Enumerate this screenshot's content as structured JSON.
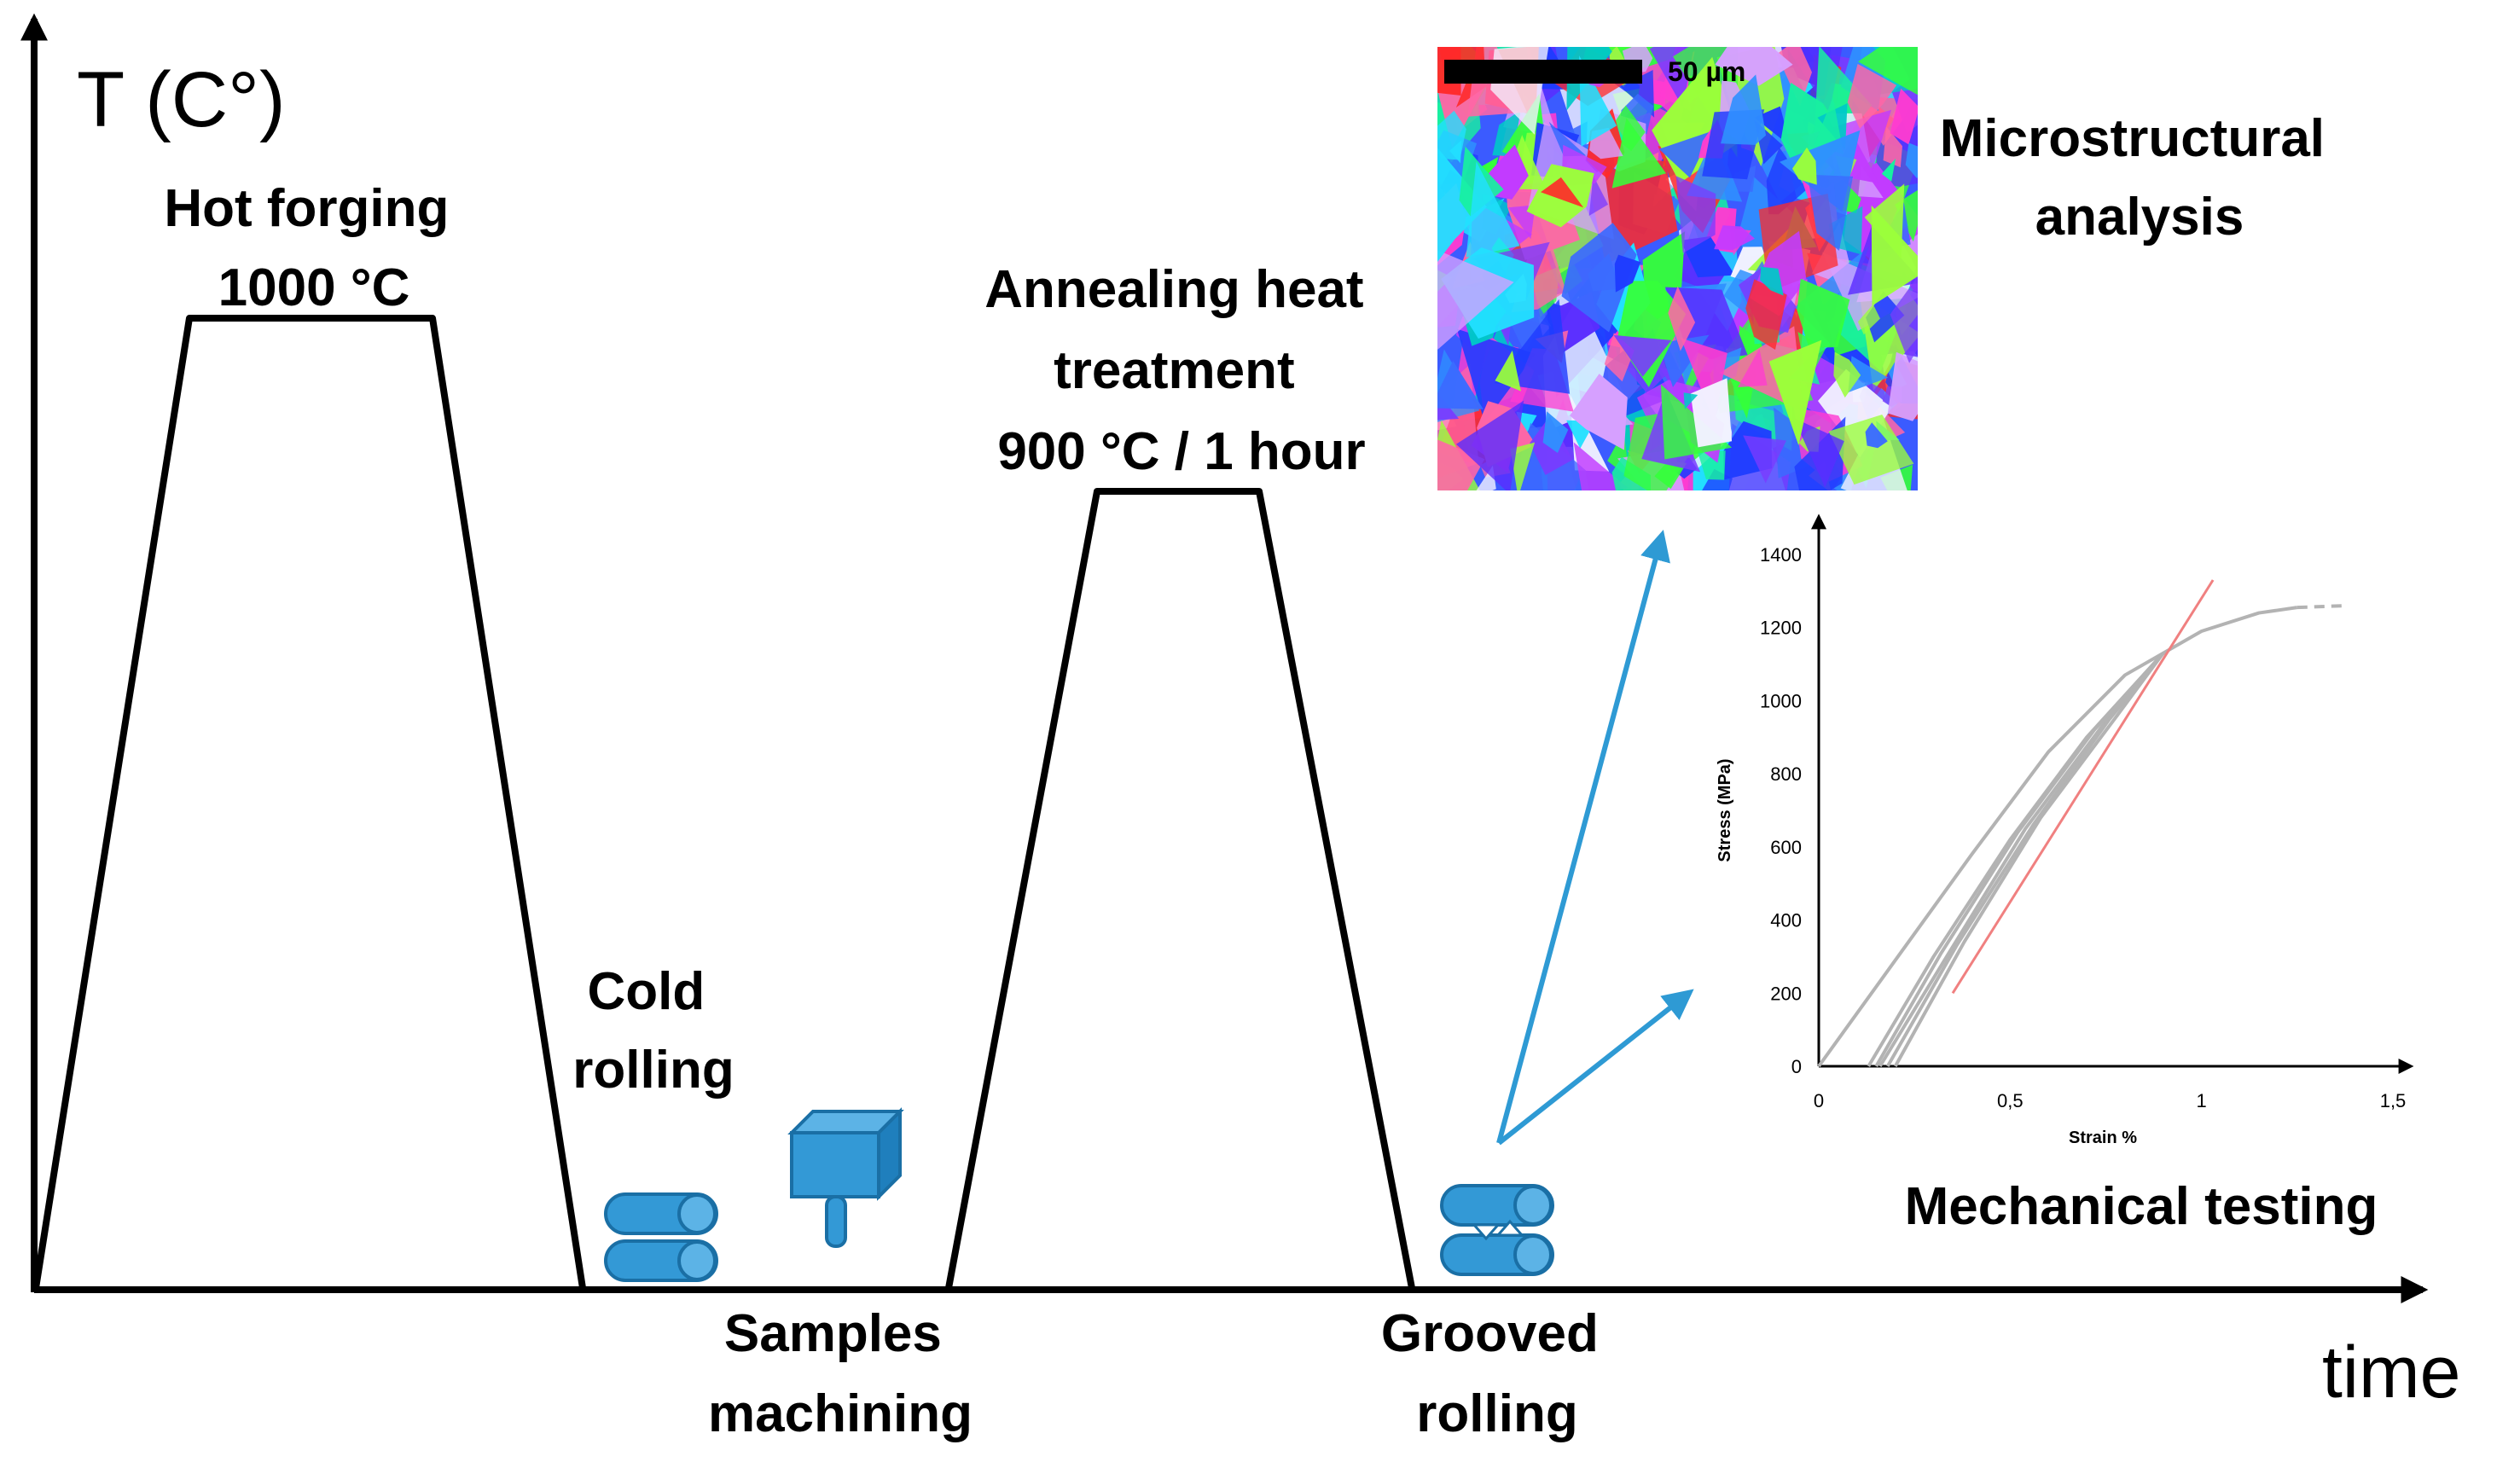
{
  "axes": {
    "y_label": "T (C°)",
    "x_label": "time"
  },
  "stages": {
    "hot_forging": [
      "Hot forging",
      "1000 °C"
    ],
    "cold_rolling": [
      "Cold",
      "rolling"
    ],
    "samples_machining": [
      "Samples",
      "machining"
    ],
    "annealing": [
      "Annealing heat",
      "treatment",
      "900 °C / 1 hour"
    ],
    "grooved_rolling": [
      "Grooved",
      "rolling"
    ],
    "microstructural": [
      "Microstructural",
      "analysis"
    ],
    "mechanical": "Mechanical testing"
  },
  "micrograph": {
    "scale_bar": "50 µm"
  },
  "colors": {
    "line": "#000000",
    "arrow": "#2e9ad4",
    "icon_fill": "#3399d6",
    "icon_stroke": "#1a6fa5",
    "curve": "#b3b3b3",
    "fit_line": "#f08080"
  },
  "stress_strain_chart": {
    "chart_data": {
      "type": "line",
      "xlabel": "Strain %",
      "ylabel": "Stress (MPa)",
      "xlim": [
        0,
        1.5
      ],
      "ylim": [
        0,
        1400
      ],
      "x_ticks": [
        "0",
        "0,5",
        "1",
        "1,5"
      ],
      "y_ticks": [
        "0",
        "200",
        "400",
        "600",
        "800",
        "1000",
        "1200",
        "1400"
      ],
      "x_tick_values": [
        0,
        0.5,
        1,
        1.5
      ],
      "y_tick_values": [
        0,
        200,
        400,
        600,
        800,
        1000,
        1200,
        1400
      ],
      "series": [
        {
          "points": [
            [
              0,
              0
            ],
            [
              0.2,
              290
            ],
            [
              0.4,
              580
            ],
            [
              0.6,
              860
            ],
            [
              0.8,
              1070
            ],
            [
              1.0,
              1190
            ],
            [
              1.15,
              1240
            ],
            [
              1.25,
              1255
            ]
          ],
          "dashed_tail": [
            [
              1.25,
              1255
            ],
            [
              1.38,
              1260
            ]
          ]
        },
        {
          "points": [
            [
              0.13,
              0
            ],
            [
              0.3,
              300
            ],
            [
              0.5,
              620
            ],
            [
              0.7,
              900
            ],
            [
              0.9,
              1130
            ]
          ]
        },
        {
          "points": [
            [
              0.15,
              0
            ],
            [
              0.32,
              310
            ],
            [
              0.52,
              640
            ],
            [
              0.72,
              920
            ],
            [
              0.9,
              1130
            ]
          ]
        },
        {
          "points": [
            [
              0.16,
              0
            ],
            [
              0.34,
              310
            ],
            [
              0.54,
              650
            ],
            [
              0.74,
              930
            ],
            [
              0.9,
              1130
            ]
          ]
        },
        {
          "points": [
            [
              0.18,
              0
            ],
            [
              0.36,
              330
            ],
            [
              0.56,
              660
            ],
            [
              0.76,
              950
            ],
            [
              0.9,
              1130
            ]
          ]
        },
        {
          "points": [
            [
              0.2,
              0
            ],
            [
              0.38,
              340
            ],
            [
              0.58,
              680
            ],
            [
              0.78,
              960
            ],
            [
              0.9,
              1130
            ]
          ]
        }
      ],
      "fit_line": [
        [
          0.35,
          200
        ],
        [
          1.03,
          1330
        ]
      ]
    }
  }
}
